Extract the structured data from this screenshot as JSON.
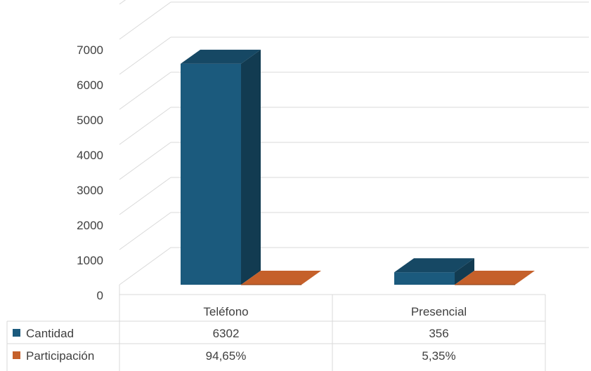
{
  "chart_data": {
    "type": "bar",
    "categories": [
      "Teléfono",
      "Presencial"
    ],
    "series": [
      {
        "name": "Cantidad",
        "values": [
          6302,
          356
        ],
        "display": [
          "6302",
          "356"
        ],
        "color": "#1b5a7d"
      },
      {
        "name": "Participación",
        "values": [
          94.65,
          5.35
        ],
        "display": [
          "94,65%",
          "5,35%"
        ],
        "color": "#c5602a"
      }
    ],
    "y_ticks": [
      "0",
      "1000",
      "2000",
      "3000",
      "4000",
      "5000",
      "6000",
      "7000"
    ],
    "ylim": [
      0,
      7000
    ],
    "grid": true,
    "legend": "data-table",
    "style": "3d-columns"
  }
}
